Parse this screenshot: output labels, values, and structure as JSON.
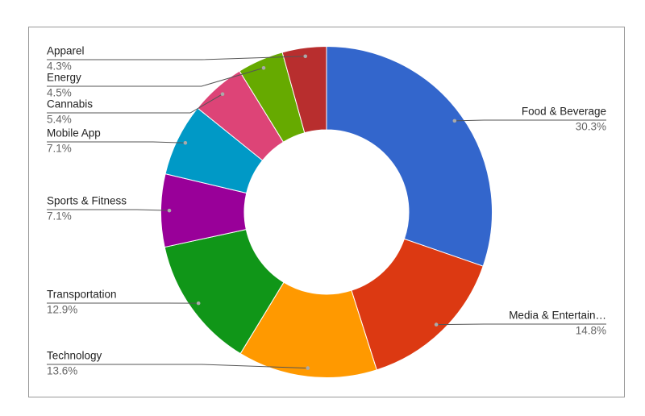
{
  "chart_data": {
    "type": "donut",
    "categories": [
      "Food & Beverage",
      "Media & Entertain…",
      "Technology",
      "Transportation",
      "Sports & Fitness",
      "Mobile App",
      "Cannabis",
      "Energy",
      "Apparel"
    ],
    "values": [
      30.3,
      14.8,
      13.6,
      12.9,
      7.1,
      7.1,
      5.4,
      4.5,
      4.3
    ],
    "value_labels": [
      "30.3%",
      "14.8%",
      "13.6%",
      "12.9%",
      "7.1%",
      "7.1%",
      "5.4%",
      "4.5%",
      "4.3%"
    ],
    "colors": [
      "#3366cc",
      "#dc3912",
      "#ff9900",
      "#109618",
      "#990099",
      "#0099c6",
      "#dd4477",
      "#66aa00",
      "#b82e2e"
    ]
  }
}
